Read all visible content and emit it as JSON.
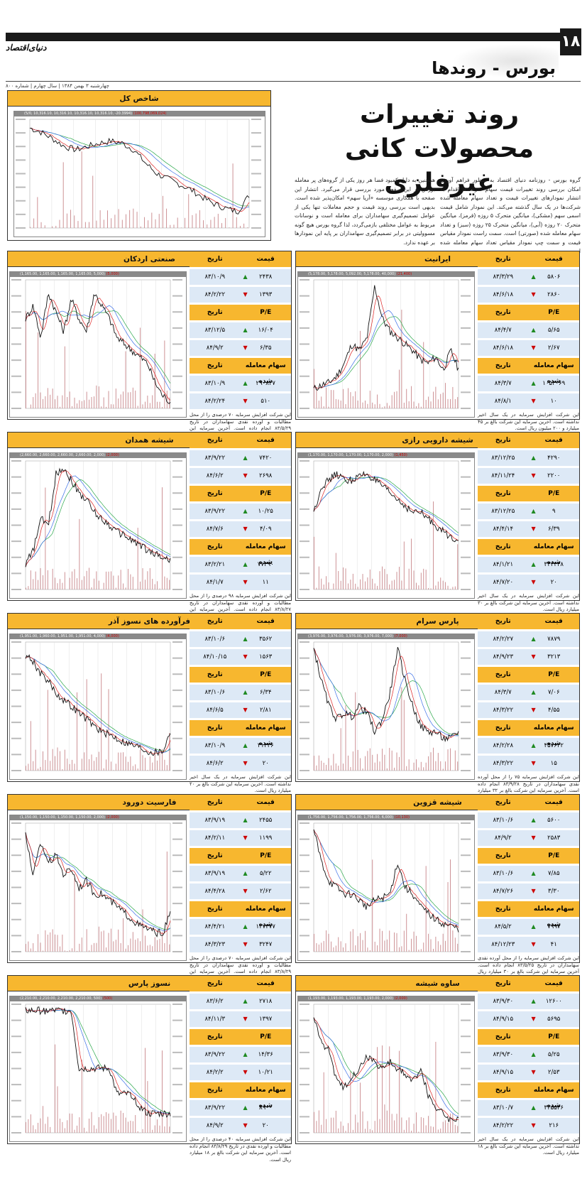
{
  "header": {
    "page_number": "۱۸",
    "brand": "دنیای‌اقتصاد",
    "section": "بورس - روندها",
    "dateline": "چهارشنبه ۳ بهمن ۱۳۸۴ | سال چهارم | شماره ۸۰۰"
  },
  "article": {
    "headline_line1": "روند تغییرات",
    "headline_line2": "محصولات کانی غیرفلزی",
    "col1": "گروه بورس - روزنامه دنیای اقتصاد به منظور فراهم آوردن امکان بررسی روند تغییرات قیمت سهام شرکت‌ها اقدام به انتشار نمودارهای تغییرات قیمت و تعداد سهام معامله شده شرکت‌ها در یک سال گذشته می‌کند. این نمودار شامل قیمت اسمی سهم (مشکی)، میانگین متحرک ۵ روزه (قرمز)، میانگین متحرک ۲۰ روزه (آبی)، میانگین متحرک ۲۵ روزه (سبز) و تعداد سهام معامله شده (صورتی) است. سمت راست نمودار مقیاس قیمت و سمت چپ نمودار مقیاس تعداد سهام معامله شده است.",
    "col2": "همچنین به دلیل کمبود فضا هر روز یکی از گروه‌های پر معامله بورس در این صفحه مورد بررسی قرار می‌گیرد. انتشار این صفحه با همکاری موسسه «آریا سهم» امکان‌پذیر شده است. بدیهی است بررسی روند قیمت و حجم معاملات تنها یکی از عوامل تصمیم‌گیری سهامداران برای معامله است و نوسانات مربوط به عوامل مختلفی بازمی‌گردد، لذا گروه بورس هیچ گونه مسوولیتی در برابر تصمیم‌گیری سهامداران بر پایه این نمودارها بر عهده ندارد."
  },
  "labels": {
    "price": "قیمت",
    "date": "تاریخ",
    "pe": "P/E",
    "volume": "سهام معامله شده"
  },
  "main_chart": {
    "title": "شاخص کل",
    "top": "(5/0, 10,316.10, 10,316.10, 10,316.10, 10,316.10, -20.3994)",
    "top_red": "(100,798,069,024)"
  },
  "companies": [
    {
      "name": "ایرانیت",
      "top": "(5,178.00, 5,178.00, 5,092.00, 5,178.00, 40,000)",
      "top_red": "(21,400)",
      "price": [
        {
          "v": "۵۸۰۶",
          "d": "۸۳/۳/۲۹",
          "dir": "up"
        },
        {
          "v": "۲۸۶۰",
          "d": "۸۴/۶/۱۸",
          "dir": "dn"
        }
      ],
      "pe": [
        {
          "v": "۵/۶۵",
          "d": "۸۴/۴/۷",
          "dir": "up"
        },
        {
          "v": "۲/۶۷",
          "d": "۸۴/۶/۱۸",
          "dir": "dn"
        }
      ],
      "vol": [
        {
          "v": "۱۰۵۳۰۶۹",
          "d": "۸۴/۳/۷",
          "dir": "up"
        },
        {
          "v": "۱۰",
          "d": "۸۴/۸/۱",
          "dir": "dn"
        }
      ],
      "note": "این شرکت افزایش سرمایه در یک سال اخیر نداشته است. آخرین سرمایه این شرکت بالغ بر ۴۵ میلیارد و ۲۰۰ میلیون ریال است."
    },
    {
      "name": "صنعتی اردکان",
      "top": "(1,165.00, 1,165.00, 1,165.00, 1,165.00, 5,000)",
      "top_red": "(5,000)",
      "price": [
        {
          "v": "۲۴۳۸",
          "d": "۸۳/۱۰/۹",
          "dir": "up"
        },
        {
          "v": "۱۳۹۳",
          "d": "۸۴/۲/۲۲",
          "dir": "dn"
        }
      ],
      "pe": [
        {
          "v": "۱۶/۰۴",
          "d": "۸۳/۱۲/۵",
          "dir": "up"
        },
        {
          "v": "۶/۳۵",
          "d": "۸۴/۹/۲",
          "dir": "dn"
        }
      ],
      "vol": [
        {
          "v": "۲۹۰۸۲۷",
          "d": "۸۳/۱۰/۹",
          "dir": "up"
        },
        {
          "v": "۵۱۰",
          "d": "۸۴/۲/۲۴",
          "dir": "dn"
        }
      ],
      "note": "این شرکت افزایش سرمایه ۷۰ درصدی را از محل مطالبات و آورده نقدی سهامداران در تاریخ ۸۳/۵/۲۹ انجام داده است. آخرین سرمایه این شرکت بالغ بر ۱۷ میلیارد ریال است."
    },
    {
      "name": "شیشه دارویی رازی",
      "top": "(1,170.00, 1,170.00, 1,170.00, 1,170.00, 2,000)",
      "top_red": "(1,450)",
      "price": [
        {
          "v": "۴۲۹۰",
          "d": "۸۳/۱۲/۲۵",
          "dir": "up"
        },
        {
          "v": "۲۲۰۰",
          "d": "۸۴/۱۱/۲۴",
          "dir": "dn"
        }
      ],
      "pe": [
        {
          "v": "۹",
          "d": "۸۳/۱۲/۲۵",
          "dir": "up"
        },
        {
          "v": "۶/۳۹",
          "d": "۸۴/۴/۱۴",
          "dir": "dn"
        }
      ],
      "vol": [
        {
          "v": "۳۴۳۴۴۸",
          "d": "۸۴/۱/۲۱",
          "dir": "up"
        },
        {
          "v": "۲۰",
          "d": "۸۴/۷/۲۰",
          "dir": "dn"
        }
      ],
      "note": "این شرکت افزایش سرمایه در یک سال اخیر نداشته است. آخرین سرمایه این شرکت بالغ بر ۳۰ میلیارد ریال است."
    },
    {
      "name": "شیشه همدان",
      "top": "(2,660.00, 2,660.00, 2,660.00, 2,660.00, 2,000)",
      "top_red": "(2,000)",
      "price": [
        {
          "v": "۷۴۲۰",
          "d": "۸۳/۹/۲۲",
          "dir": "up"
        },
        {
          "v": "۲۶۹۸",
          "d": "۸۴/۶/۲",
          "dir": "dn"
        }
      ],
      "pe": [
        {
          "v": "۱۰/۲۵",
          "d": "۸۳/۹/۲۲",
          "dir": "up"
        },
        {
          "v": "۴/۰۹",
          "d": "۸۴/۷/۶",
          "dir": "dn"
        }
      ],
      "vol": [
        {
          "v": "۷۷۳۹۰",
          "d": "۸۳/۲/۲۱",
          "dir": "up"
        },
        {
          "v": "۱۱",
          "d": "۸۴/۱/۷",
          "dir": "dn"
        }
      ],
      "note": "این شرکت افزایش سرمایه ۹۸ درصدی را از محل مطالبات و آورده نقدی سهامداران در تاریخ ۸۳/۸/۲۷ انجام داده است. آخرین سرمایه این شرکت بالغ بر ۲۰ میلیارد ریال است."
    },
    {
      "name": "پارس سرام",
      "top": "(3,976.00, 3,976.00, 3,976.00, 3,976.00, 7,000)",
      "top_red": "(7,000)",
      "price": [
        {
          "v": "۷۸۷۹",
          "d": "۸۴/۲/۲۷",
          "dir": "up"
        },
        {
          "v": "۳۲۱۳",
          "d": "۸۴/۹/۲۳",
          "dir": "dn"
        }
      ],
      "pe": [
        {
          "v": "۷/۰۶",
          "d": "۸۴/۳/۷",
          "dir": "up"
        },
        {
          "v": "۴/۵۵",
          "d": "۸۴/۳/۲۲",
          "dir": "dn"
        }
      ],
      "vol": [
        {
          "v": "۴۵۷۶۲۲",
          "d": "۸۴/۲/۲۸",
          "dir": "up"
        },
        {
          "v": "۱۵",
          "d": "۸۴/۳/۲۲",
          "dir": "dn"
        }
      ],
      "note": "این شرکت افزایش سرمایه ۷۵ را از محل آورده نقدی سهامداران در تاریخ ۸۳/۹/۲۸ انجام داده است. آخرین سرمایه این شرکت بالغ بر ۳۲ میلیارد و ۴۰۰ میلیون ریال است."
    },
    {
      "name": "فرآورده های نسوز آذر",
      "top": "(1,951.00, 1,960.00, 1,951.00, 1,951.00, 4,000)",
      "top_red": "(4,000)",
      "price": [
        {
          "v": "۳۵۶۲",
          "d": "۸۳/۱۰/۶",
          "dir": "up"
        },
        {
          "v": "۱۵۶۳",
          "d": "۸۴/۱۰/۱۵",
          "dir": "dn"
        }
      ],
      "pe": [
        {
          "v": "۶/۳۴",
          "d": "۸۳/۱۰/۶",
          "dir": "up"
        },
        {
          "v": "۲/۸۱",
          "d": "۸۴/۶/۵",
          "dir": "dn"
        }
      ],
      "vol": [
        {
          "v": "۳۱۳۳۶",
          "d": "۸۳/۱۰/۹",
          "dir": "up"
        },
        {
          "v": "۲۰",
          "d": "۸۴/۶/۲",
          "dir": "dn"
        }
      ],
      "note": "این شرکت افزایش سرمایه در یک سال اخیر نداشته است. آخرین سرمایه این شرکت بالغ بر ۲۰ میلیارد ریال است."
    },
    {
      "name": "شیشه قزوین",
      "top": "(1,756.00, 1,756.00, 1,756.00, 1,756.00, 6,000)",
      "top_red": "(10,130)",
      "price": [
        {
          "v": "۵۶۰۰",
          "d": "۸۳/۱۰/۶",
          "dir": "up"
        },
        {
          "v": "۲۵۸۳",
          "d": "۸۴/۹/۲",
          "dir": "dn"
        }
      ],
      "pe": [
        {
          "v": "۷/۸۵",
          "d": "۸۳/۱۰/۶",
          "dir": "up"
        },
        {
          "v": "۳/۳۰",
          "d": "۸۴/۷/۲۶",
          "dir": "dn"
        }
      ],
      "vol": [
        {
          "v": "۷۹۹۷",
          "d": "۸۴/۵/۲",
          "dir": "up"
        },
        {
          "v": "۴۱",
          "d": "۸۴/۱۲/۲۳",
          "dir": "dn"
        }
      ],
      "note": "این شرکت افزایش سرمایه را از محل آورده نقدی سهامداران در تاریخ ۸۳/۵/۲۵ انجام داده است. آخرین سرمایه این شرکت بالغ بر ۳۰ میلیارد ریال است."
    },
    {
      "name": "فارسیت دورود",
      "top": "(1,150.00, 1,150.00, 1,150.00, 1,150.00, 2,000)",
      "top_red": "(2,000)",
      "price": [
        {
          "v": "۲۴۵۵",
          "d": "۸۳/۹/۱۹",
          "dir": "up"
        },
        {
          "v": "۱۱۹۹",
          "d": "۸۴/۲/۱۱",
          "dir": "dn"
        }
      ],
      "pe": [
        {
          "v": "۵/۲۲",
          "d": "۸۳/۹/۱۹",
          "dir": "up"
        },
        {
          "v": "۲/۶۲",
          "d": "۸۴/۴/۲۸",
          "dir": "dn"
        }
      ],
      "vol": [
        {
          "v": "۱۲۷۳۷۷",
          "d": "۸۴/۴/۲۱",
          "dir": "up"
        },
        {
          "v": "۳۲۴۷",
          "d": "۸۴/۳/۲۳",
          "dir": "dn"
        }
      ],
      "note": "این شرکت افزایش سرمایه ۷۰ درصدی را از محل مطالبات و آورده نقدی سهامداران در تاریخ ۸۳/۸/۲۹ انجام داده است. آخرین سرمایه این شرکت بالغ بر ۳۰ میلیارد ریال است."
    },
    {
      "name": "ساوه شیشه",
      "top": "(1,193.00, 1,193.00, 1,193.00, 1,193.00, 2,000)",
      "top_red": "(2,000)",
      "price": [
        {
          "v": "۱۲۶۰۰",
          "d": "۸۳/۹/۳۰",
          "dir": "up"
        },
        {
          "v": "۵۶۹۵",
          "d": "۸۴/۹/۱۵",
          "dir": "dn"
        }
      ],
      "pe": [
        {
          "v": "۵/۲۵",
          "d": "۸۳/۹/۳۰",
          "dir": "up"
        },
        {
          "v": "۲/۵۳",
          "d": "۸۴/۹/۱۵",
          "dir": "dn"
        }
      ],
      "vol": [
        {
          "v": "۳۲۵۵۴۶",
          "d": "۸۳/۱۰/۷",
          "dir": "up"
        },
        {
          "v": "۲۱۶",
          "d": "۸۴/۲/۲۲",
          "dir": "dn"
        }
      ],
      "note": "این شرکت افزایش سرمایه در یک سال اخیر نداشته است. آخرین سرمایه این شرکت بالغ بر ۱۸ میلیارد ریال است."
    },
    {
      "name": "نسوز پارس",
      "top": "(2,210.00, 2,210.00, 2,210.00, 2,210.00, 500)",
      "top_red": "(500)",
      "price": [
        {
          "v": "۲۷۱۸",
          "d": "۸۳/۶/۲",
          "dir": "up"
        },
        {
          "v": "۱۳۹۷",
          "d": "۸۴/۱۱/۳",
          "dir": "dn"
        }
      ],
      "pe": [
        {
          "v": "۱۴/۳۶",
          "d": "۸۳/۹/۲۲",
          "dir": "up"
        },
        {
          "v": "۱۰/۲۱",
          "d": "۸۴/۲/۲",
          "dir": "dn"
        }
      ],
      "vol": [
        {
          "v": "۸۹۰۰",
          "d": "۸۳/۹/۲۲",
          "dir": "up"
        },
        {
          "v": "۲۰",
          "d": "۸۴/۹/۲",
          "dir": "dn"
        }
      ],
      "note": "این شرکت افزایش سرمایه ۴۰ درصدی را از محل مطالبات و آورده نقدی در تاریخ ۸۳/۸/۲۹ انجام داده است. آخرین سرمایه این شرکت بالغ بر ۱۸ میلیارد ریال است."
    }
  ],
  "colors": {
    "title_bg": "#f7b72f",
    "row_bg": "#dde9f6",
    "up": "#1e8a22",
    "down": "#c00000",
    "price_line": "#111111",
    "ma5": "#d22",
    "ma20": "#3a6ee8",
    "ma25": "#2aa84a",
    "volume": "#c8868a"
  }
}
